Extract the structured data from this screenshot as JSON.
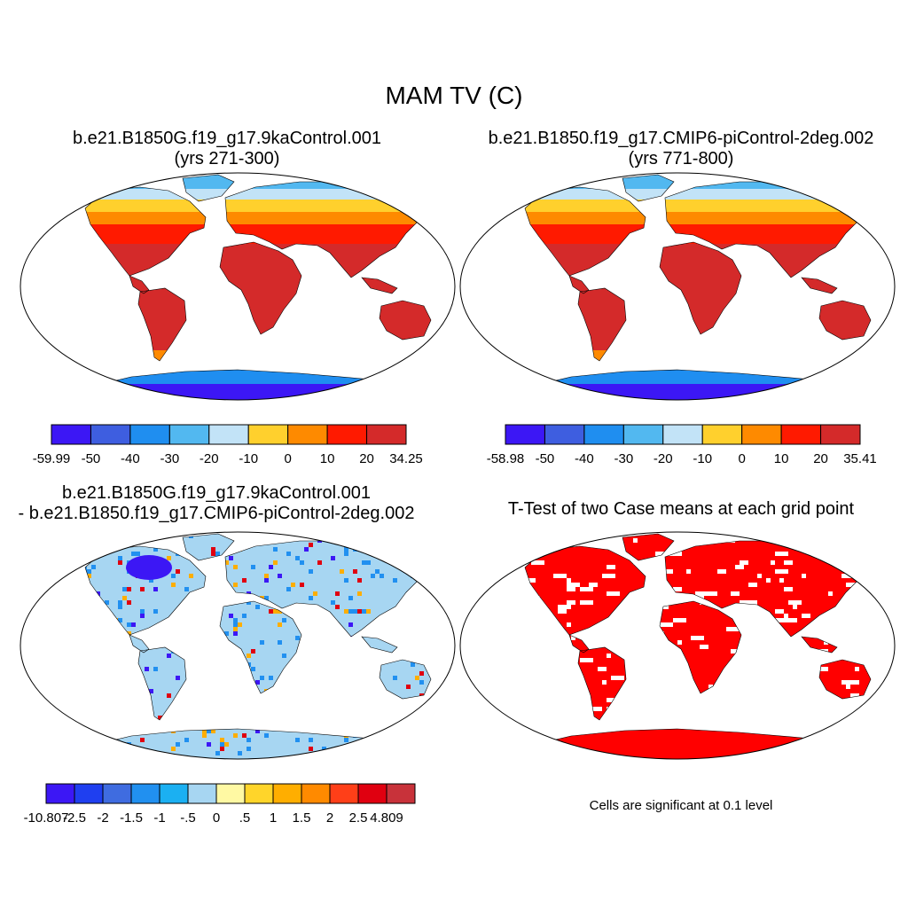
{
  "title": "MAM TV (C)",
  "panels": [
    {
      "title_line1": "b.e21.B1850G.f19_g17.9kaControl.001",
      "title_line2": "(yrs 271-300)",
      "colorbar": {
        "labels": [
          "-59.99",
          "-50",
          "-40",
          "-30",
          "-20",
          "-10",
          "0",
          "10",
          "20",
          "34.25"
        ],
        "colors": [
          "#3c17f5",
          "#3e5ee0",
          "#1f8ef0",
          "#52b8f0",
          "#c2e3f7",
          "#ffd02d",
          "#fe8a00",
          "#ff1a00",
          "#d42a2a"
        ]
      }
    },
    {
      "title_line1": "b.e21.B1850.f19_g17.CMIP6-piControl-2deg.002",
      "title_line2": "(yrs 771-800)",
      "colorbar": {
        "labels": [
          "-58.98",
          "-50",
          "-40",
          "-30",
          "-20",
          "-10",
          "0",
          "10",
          "20",
          "35.41"
        ],
        "colors": [
          "#3c17f5",
          "#3e5ee0",
          "#1f8ef0",
          "#52b8f0",
          "#c2e3f7",
          "#ffd02d",
          "#fe8a00",
          "#ff1a00",
          "#d42a2a"
        ]
      }
    },
    {
      "title_line1": "b.e21.B1850G.f19_g17.9kaControl.001",
      "title_line2": "- b.e21.B1850.f19_g17.CMIP6-piControl-2deg.002",
      "colorbar": {
        "labels": [
          "-10.807",
          "-2.5",
          "-2",
          "-1.5",
          "-1",
          "-.5",
          "0",
          ".5",
          "1",
          "1.5",
          "2",
          "2.5",
          "4.809"
        ],
        "colors": [
          "#3c17f5",
          "#1f3ff0",
          "#3f6ce0",
          "#2190f0",
          "#1bb0f2",
          "#a7d6f2",
          "#fff9a3",
          "#ffd52a",
          "#ffae00",
          "#ff8a00",
          "#ff3f18",
          "#e00010",
          "#c8323a"
        ]
      }
    },
    {
      "title_line1": "T-Test of two Case means at each grid point",
      "note": "Cells are significant at 0.1 level"
    }
  ],
  "map_colors": {
    "panel1": {
      "tropics": "#d42a2a",
      "warm": "#ff1a00",
      "mid": "#fe8a00",
      "cool": "#ffd02d",
      "cold": "#c2e3f7",
      "colder": "#52b8f0",
      "antarctica": "#1f8ef0",
      "antarctica_core": "#3c17f5"
    },
    "panel3": {
      "base": "#a7d6f2",
      "neg": "#2190f0",
      "strong_neg": "#3c17f5",
      "pos": "#ffae00",
      "strong_pos": "#e00010"
    },
    "panel4": {
      "significant": "#ff0000"
    }
  }
}
